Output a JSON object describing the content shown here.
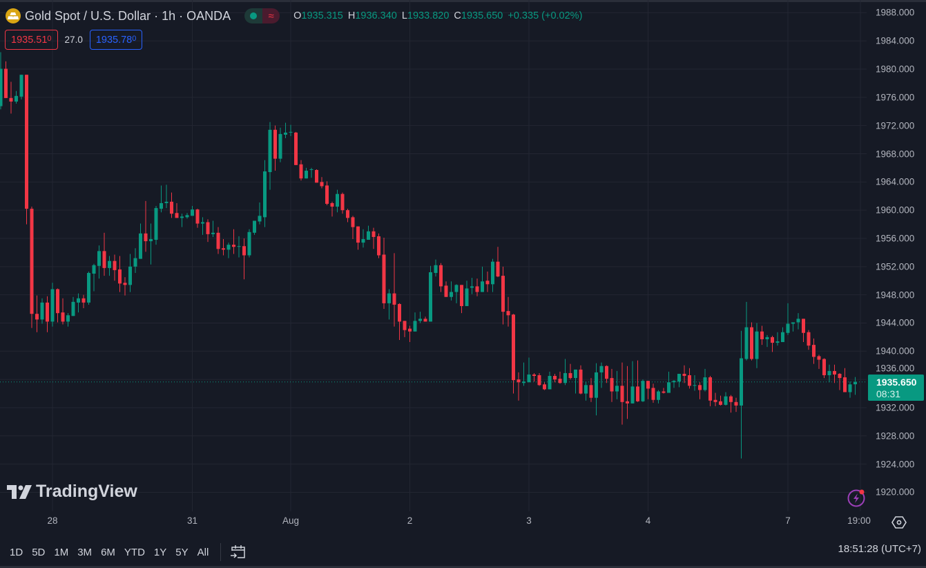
{
  "header": {
    "symbol_icon": "gold-bars-icon",
    "title": "Gold Spot / U.S. Dollar · 1h · OANDA",
    "toggle_icon": "wave-icon",
    "toggle_glyph": "≈",
    "ohlc": {
      "o_label": "O",
      "o": "1935.315",
      "h_label": "H",
      "h": "1936.340",
      "l_label": "L",
      "l": "1933.820",
      "c_label": "C",
      "c": "1935.650",
      "change": "+0.335 (+0.02%)"
    },
    "sell_price_main": "1935.51",
    "sell_price_small": "0",
    "spread": "27.0",
    "buy_price_main": "1935.78",
    "buy_price_small": "0"
  },
  "watermark": "TradingView",
  "price_tag": {
    "price": "1935.650",
    "countdown": "08:31"
  },
  "bottom_bar": {
    "ranges": [
      "1D",
      "5D",
      "1M",
      "3M",
      "6M",
      "YTD",
      "1Y",
      "5Y",
      "All"
    ],
    "clock": "18:51:28 (UTC+7)"
  },
  "colors": {
    "up": "#089981",
    "down": "#f23645",
    "background": "#161a25",
    "grid": "#232632",
    "accent_buy": "#2962ff"
  },
  "chart_data": {
    "type": "candlestick",
    "interval": "1h",
    "ylim": [
      1917.3,
      1989.8
    ],
    "y_ticks": [
      "1920.000",
      "1924.000",
      "1928.000",
      "1932.000",
      "1936.000",
      "1940.000",
      "1944.000",
      "1948.000",
      "1952.000",
      "1956.000",
      "1960.000",
      "1964.000",
      "1968.000",
      "1972.000",
      "1976.000",
      "1980.000",
      "1984.000",
      "1988.000"
    ],
    "x_ticks": [
      {
        "label": "28",
        "bar": 10
      },
      {
        "label": "31",
        "bar": 37
      },
      {
        "label": "Aug",
        "bar": 56
      },
      {
        "label": "2",
        "bar": 79
      },
      {
        "label": "3",
        "bar": 102
      },
      {
        "label": "4",
        "bar": 125
      },
      {
        "label": "7",
        "bar": 152
      },
      {
        "label": "19:00",
        "bar": 166
      }
    ],
    "last_price": 1935.65,
    "grid": true,
    "ohlc": [
      [
        1974.75,
        1982.4,
        1974.3,
        1980.05
      ],
      [
        1980.05,
        1981.1,
        1975.9,
        1975.9
      ],
      [
        1975.9,
        1978.2,
        1973.7,
        1975.4
      ],
      [
        1975.4,
        1976.9,
        1975.1,
        1976.2
      ],
      [
        1976.1,
        1979.2,
        1975.7,
        1979.2
      ],
      [
        1979.2,
        1979.2,
        1958.0,
        1960.2
      ],
      [
        1960.2,
        1960.5,
        1943.3,
        1945.3
      ],
      [
        1945.3,
        1947.9,
        1942.7,
        1944.5
      ],
      [
        1944.5,
        1947.5,
        1943.9,
        1946.9
      ],
      [
        1946.9,
        1947.8,
        1942.7,
        1944.2
      ],
      [
        1944.2,
        1949.7,
        1943.5,
        1948.8
      ],
      [
        1948.8,
        1948.9,
        1944.1,
        1945.4
      ],
      [
        1945.5,
        1947.5,
        1943.8,
        1944.2
      ],
      [
        1944.2,
        1945.4,
        1943.5,
        1945.1
      ],
      [
        1945.0,
        1947.7,
        1945.0,
        1947.0
      ],
      [
        1946.9,
        1948.2,
        1945.5,
        1947.5
      ],
      [
        1947.5,
        1948.0,
        1946.1,
        1946.9
      ],
      [
        1946.9,
        1951.3,
        1946.6,
        1951.1
      ],
      [
        1951.0,
        1952.4,
        1948.5,
        1952.2
      ],
      [
        1952.1,
        1955.0,
        1950.3,
        1954.2
      ],
      [
        1954.2,
        1956.8,
        1950.7,
        1951.8
      ],
      [
        1951.8,
        1953.5,
        1950.7,
        1952.8
      ],
      [
        1952.8,
        1953.7,
        1950.0,
        1951.5
      ],
      [
        1951.6,
        1953.5,
        1948.4,
        1949.6
      ],
      [
        1949.7,
        1950.5,
        1947.9,
        1949.4
      ],
      [
        1949.4,
        1953.8,
        1948.4,
        1952.0
      ],
      [
        1952.0,
        1954.6,
        1951.1,
        1953.2
      ],
      [
        1953.1,
        1958.1,
        1953.1,
        1956.7
      ],
      [
        1956.7,
        1961.3,
        1954.1,
        1955.6
      ],
      [
        1955.6,
        1958.1,
        1952.3,
        1955.9
      ],
      [
        1955.8,
        1960.6,
        1955.1,
        1960.3
      ],
      [
        1960.2,
        1963.5,
        1959.7,
        1961.0
      ],
      [
        1961.0,
        1963.6,
        1960.3,
        1961.2
      ],
      [
        1961.2,
        1962.5,
        1958.9,
        1959.5
      ],
      [
        1959.6,
        1961.0,
        1958.9,
        1958.9
      ],
      [
        1958.9,
        1959.5,
        1957.6,
        1959.1
      ],
      [
        1959.0,
        1959.6,
        1958.8,
        1959.3
      ],
      [
        1959.2,
        1960.6,
        1959.2,
        1960.1
      ],
      [
        1960.1,
        1960.2,
        1957.5,
        1958.1
      ],
      [
        1958.1,
        1959.0,
        1956.5,
        1958.3
      ],
      [
        1958.3,
        1958.7,
        1955.5,
        1956.6
      ],
      [
        1956.6,
        1958.5,
        1956.2,
        1956.8
      ],
      [
        1956.8,
        1957.6,
        1953.8,
        1954.5
      ],
      [
        1954.6,
        1955.9,
        1953.6,
        1954.4
      ],
      [
        1954.4,
        1955.4,
        1953.2,
        1955.1
      ],
      [
        1955.1,
        1957.3,
        1953.8,
        1954.8
      ],
      [
        1954.8,
        1956.3,
        1953.3,
        1954.9
      ],
      [
        1954.9,
        1956.0,
        1950.2,
        1953.6
      ],
      [
        1953.6,
        1957.3,
        1953.3,
        1956.9
      ],
      [
        1956.8,
        1958.5,
        1956.5,
        1958.5
      ],
      [
        1958.4,
        1961.1,
        1958.0,
        1959.2
      ],
      [
        1959.0,
        1967.1,
        1957.6,
        1965.5
      ],
      [
        1965.4,
        1972.5,
        1962.9,
        1971.4
      ],
      [
        1971.4,
        1972.0,
        1965.6,
        1967.3
      ],
      [
        1967.3,
        1971.7,
        1966.8,
        1970.8
      ],
      [
        1970.7,
        1972.4,
        1970.2,
        1971.0
      ],
      [
        1971.0,
        1972.1,
        1970.5,
        1971.1
      ],
      [
        1971.0,
        1971.1,
        1966.4,
        1966.4
      ],
      [
        1966.5,
        1967.1,
        1964.2,
        1964.5
      ],
      [
        1964.5,
        1966.0,
        1964.5,
        1965.6
      ],
      [
        1965.7,
        1966.0,
        1964.6,
        1965.8
      ],
      [
        1965.7,
        1965.8,
        1963.9,
        1963.9
      ],
      [
        1964.0,
        1964.7,
        1963.1,
        1963.4
      ],
      [
        1963.5,
        1964.1,
        1960.7,
        1960.9
      ],
      [
        1961.0,
        1961.2,
        1959.1,
        1960.5
      ],
      [
        1960.5,
        1962.9,
        1959.7,
        1962.3
      ],
      [
        1962.3,
        1962.5,
        1959.5,
        1960.0
      ],
      [
        1960.0,
        1960.2,
        1958.3,
        1958.9
      ],
      [
        1959.0,
        1959.2,
        1955.9,
        1957.6
      ],
      [
        1957.7,
        1957.7,
        1954.4,
        1955.4
      ],
      [
        1955.4,
        1957.3,
        1954.7,
        1955.9
      ],
      [
        1955.8,
        1957.8,
        1955.8,
        1957.0
      ],
      [
        1957.0,
        1957.5,
        1954.5,
        1956.2
      ],
      [
        1956.3,
        1956.7,
        1953.2,
        1953.6
      ],
      [
        1953.7,
        1956.1,
        1946.0,
        1946.8
      ],
      [
        1946.8,
        1948.8,
        1944.5,
        1948.2
      ],
      [
        1948.2,
        1953.9,
        1943.5,
        1946.6
      ],
      [
        1946.7,
        1946.8,
        1941.6,
        1944.2
      ],
      [
        1944.3,
        1944.3,
        1942.0,
        1943.0
      ],
      [
        1943.2,
        1943.6,
        1941.3,
        1942.8
      ],
      [
        1942.8,
        1945.5,
        1942.8,
        1944.3
      ],
      [
        1944.3,
        1945.6,
        1944.0,
        1944.6
      ],
      [
        1944.6,
        1944.9,
        1944.2,
        1944.2
      ],
      [
        1944.2,
        1952.1,
        1944.2,
        1951.2
      ],
      [
        1951.1,
        1953.0,
        1950.6,
        1952.2
      ],
      [
        1952.2,
        1952.5,
        1948.4,
        1949.2
      ],
      [
        1949.3,
        1949.9,
        1947.7,
        1947.7
      ],
      [
        1947.7,
        1949.9,
        1947.2,
        1948.4
      ],
      [
        1948.4,
        1949.5,
        1946.8,
        1949.4
      ],
      [
        1949.4,
        1949.4,
        1945.4,
        1946.4
      ],
      [
        1946.4,
        1950.0,
        1946.4,
        1948.9
      ],
      [
        1949.0,
        1950.4,
        1948.1,
        1949.2
      ],
      [
        1949.2,
        1950.3,
        1947.8,
        1948.4
      ],
      [
        1948.4,
        1952.0,
        1948.4,
        1949.9
      ],
      [
        1950.0,
        1951.3,
        1948.4,
        1949.5
      ],
      [
        1949.5,
        1953.1,
        1948.4,
        1952.7
      ],
      [
        1952.7,
        1954.8,
        1950.5,
        1950.6
      ],
      [
        1950.7,
        1952.0,
        1943.8,
        1945.6
      ],
      [
        1945.7,
        1947.7,
        1943.5,
        1945.1
      ],
      [
        1945.2,
        1945.3,
        1934.0,
        1935.9
      ],
      [
        1936.0,
        1937.0,
        1933.0,
        1935.6
      ],
      [
        1935.5,
        1938.4,
        1935.1,
        1935.7
      ],
      [
        1935.6,
        1939.1,
        1935.6,
        1936.7
      ],
      [
        1936.7,
        1936.9,
        1935.7,
        1936.5
      ],
      [
        1936.6,
        1936.9,
        1935.1,
        1935.2
      ],
      [
        1935.3,
        1935.6,
        1934.5,
        1934.6
      ],
      [
        1934.6,
        1937.1,
        1934.6,
        1936.5
      ],
      [
        1936.5,
        1936.8,
        1935.6,
        1936.0
      ],
      [
        1936.1,
        1937.1,
        1935.4,
        1935.5
      ],
      [
        1935.5,
        1938.9,
        1935.2,
        1936.9
      ],
      [
        1936.9,
        1938.2,
        1936.0,
        1936.2
      ],
      [
        1936.2,
        1937.4,
        1934.0,
        1937.4
      ],
      [
        1937.4,
        1938.0,
        1933.9,
        1934.0
      ],
      [
        1934.0,
        1935.7,
        1933.0,
        1935.2
      ],
      [
        1935.2,
        1936.2,
        1932.8,
        1933.4
      ],
      [
        1933.4,
        1938.3,
        1930.9,
        1937.0
      ],
      [
        1937.0,
        1938.4,
        1934.8,
        1937.9
      ],
      [
        1937.9,
        1938.0,
        1935.5,
        1936.1
      ],
      [
        1936.2,
        1937.5,
        1932.8,
        1934.3
      ],
      [
        1934.3,
        1937.2,
        1933.2,
        1935.1
      ],
      [
        1935.1,
        1938.4,
        1929.6,
        1932.8
      ],
      [
        1932.9,
        1937.9,
        1930.4,
        1932.6
      ],
      [
        1932.6,
        1938.6,
        1932.6,
        1935.0
      ],
      [
        1935.0,
        1938.7,
        1932.8,
        1932.9
      ],
      [
        1932.9,
        1936.0,
        1932.8,
        1935.8
      ],
      [
        1935.8,
        1935.8,
        1933.2,
        1934.7
      ],
      [
        1934.8,
        1935.4,
        1932.7,
        1933.1
      ],
      [
        1933.1,
        1934.5,
        1932.6,
        1934.3
      ],
      [
        1934.3,
        1934.8,
        1934.0,
        1934.1
      ],
      [
        1934.1,
        1937.1,
        1934.1,
        1935.6
      ],
      [
        1935.6,
        1935.9,
        1934.8,
        1935.8
      ],
      [
        1935.7,
        1936.8,
        1934.9,
        1936.8
      ],
      [
        1936.8,
        1938.0,
        1935.5,
        1936.5
      ],
      [
        1936.6,
        1937.6,
        1934.7,
        1935.1
      ],
      [
        1935.1,
        1936.6,
        1934.4,
        1935.2
      ],
      [
        1935.2,
        1935.6,
        1933.2,
        1934.5
      ],
      [
        1934.5,
        1937.5,
        1934.3,
        1936.3
      ],
      [
        1936.3,
        1936.5,
        1932.2,
        1933.0
      ],
      [
        1933.1,
        1934.1,
        1932.2,
        1932.8
      ],
      [
        1932.9,
        1933.7,
        1932.3,
        1932.4
      ],
      [
        1932.4,
        1934.2,
        1932.3,
        1933.6
      ],
      [
        1933.6,
        1933.8,
        1931.3,
        1932.8
      ],
      [
        1932.8,
        1933.4,
        1931.4,
        1932.3
      ],
      [
        1932.3,
        1942.9,
        1924.8,
        1939.0
      ],
      [
        1938.9,
        1947.0,
        1938.7,
        1943.4
      ],
      [
        1943.4,
        1944.1,
        1938.7,
        1938.9
      ],
      [
        1938.9,
        1944.0,
        1937.6,
        1942.8
      ],
      [
        1942.8,
        1943.6,
        1940.9,
        1941.7
      ],
      [
        1941.7,
        1942.3,
        1940.6,
        1942.0
      ],
      [
        1942.0,
        1942.2,
        1939.9,
        1941.2
      ],
      [
        1941.2,
        1942.7,
        1940.8,
        1941.4
      ],
      [
        1941.3,
        1943.4,
        1941.3,
        1942.7
      ],
      [
        1942.6,
        1946.8,
        1942.3,
        1943.9
      ],
      [
        1943.9,
        1944.1,
        1942.8,
        1944.1
      ],
      [
        1944.1,
        1945.4,
        1943.1,
        1944.6
      ],
      [
        1944.6,
        1944.6,
        1941.3,
        1942.6
      ],
      [
        1942.7,
        1943.0,
        1940.2,
        1940.8
      ],
      [
        1940.9,
        1941.8,
        1938.2,
        1939.2
      ],
      [
        1939.3,
        1939.5,
        1937.5,
        1938.8
      ],
      [
        1938.9,
        1939.0,
        1936.2,
        1936.6
      ],
      [
        1936.6,
        1938.1,
        1935.6,
        1937.2
      ],
      [
        1937.2,
        1938.1,
        1935.5,
        1936.7
      ],
      [
        1936.8,
        1936.9,
        1934.5,
        1936.2
      ],
      [
        1936.3,
        1937.6,
        1934.2,
        1934.2
      ],
      [
        1934.2,
        1935.7,
        1933.4,
        1935.3
      ],
      [
        1935.315,
        1936.34,
        1933.82,
        1935.65
      ]
    ]
  }
}
